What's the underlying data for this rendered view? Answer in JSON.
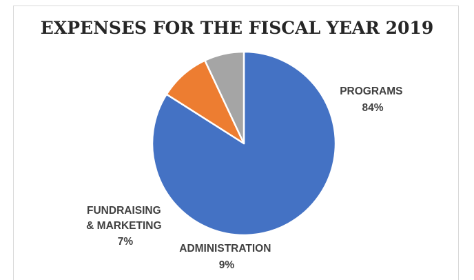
{
  "chart_data": {
    "type": "pie",
    "title": "EXPENSES FOR THE FISCAL YEAR 2019",
    "slices": [
      {
        "label": "PROGRAMS",
        "value": 84,
        "display": "84%",
        "color": "#4472C4"
      },
      {
        "label": "ADMINISTRATION",
        "value": 9,
        "display": "9%",
        "color": "#ED7D31"
      },
      {
        "label": "FUNDRAISING & MARKETING",
        "value": 7,
        "display": "7%",
        "color": "#A5A5A5"
      }
    ],
    "legend": "none",
    "data_labels": "outside"
  }
}
